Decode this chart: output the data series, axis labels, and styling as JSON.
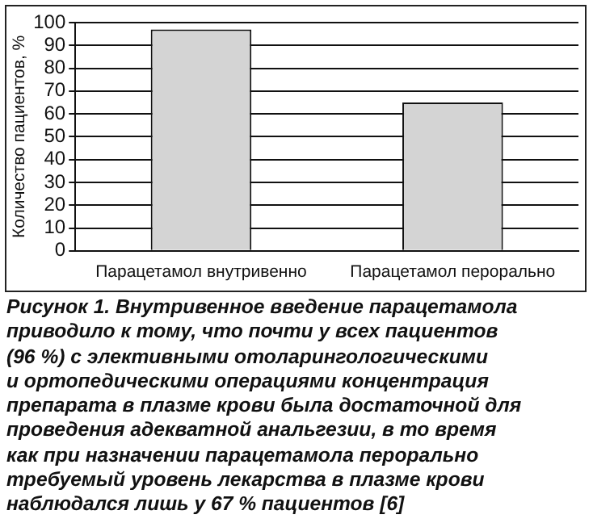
{
  "chart_data": {
    "type": "bar",
    "ylabel": "Количество пациентов, %",
    "categories": [
      "Парацетамол внутривенно",
      "Парацетамол перорально"
    ],
    "values": [
      97,
      65
    ],
    "color": "#d4d4d4",
    "ylim": [
      0,
      100
    ],
    "yticks": [
      0,
      10,
      20,
      30,
      40,
      50,
      60,
      70,
      80,
      90,
      100
    ],
    "grid": "y",
    "legend": false,
    "annotations": [
      "Рисунок 1. Внутривенное введение парацетамола\nприводило к тому, что почти у всех пациентов\n(96 %) с элективными отоларингологическими\nи ортопедическими операциями концентрация\nпрепарата в плазме крови была достаточной для\nпроведения адекватной анальгезии, в то время\nкак при назначении парацетамола перорально\nтребуемый уровень лекарства в плазме крови\nнаблюдался лишь у 67 % пациентов [6]"
    ]
  }
}
